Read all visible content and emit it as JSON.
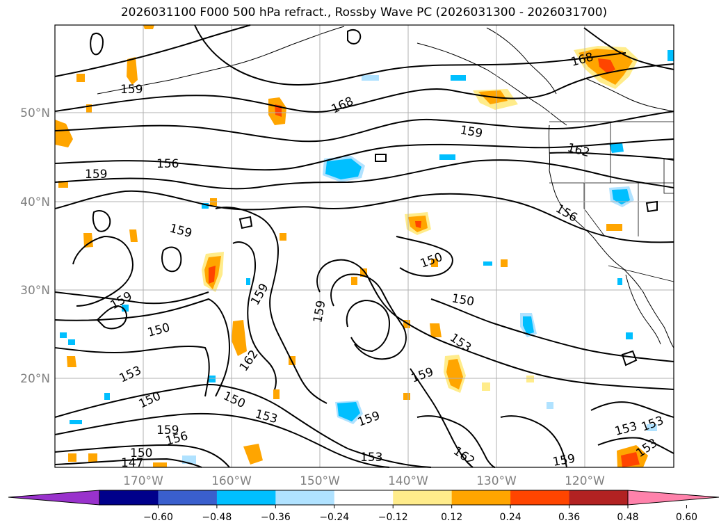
{
  "title": "2026031100 F000 500 hPa refract., Rossby Wave PC (2026031300 - 2026031700)",
  "lat_labels": [
    "50°N",
    "40°N",
    "30°N",
    "20°N"
  ],
  "lon_labels": [
    "170°W",
    "160°W",
    "150°W",
    "140°W",
    "130°W",
    "120°W"
  ],
  "colorbar": {
    "ticks": [
      "−0.60",
      "−0.48",
      "−0.36",
      "−0.24",
      "−0.12",
      "0.12",
      "0.24",
      "0.36",
      "0.48",
      "0.60"
    ],
    "colors": [
      "#9932cc",
      "#00008b",
      "#3a5fcd",
      "#00bfff",
      "#b0e2ff",
      "#ffffff",
      "#ffec8b",
      "#ffa500",
      "#ff4500",
      "#b22222",
      "#ff82ab"
    ]
  },
  "contour_labels": [
    "159",
    "159",
    "156",
    "168",
    "159",
    "168",
    "162",
    "159",
    "156",
    "159",
    "150",
    "150",
    "159",
    "159",
    "150",
    "153",
    "153",
    "162",
    "150",
    "150",
    "153",
    "159",
    "159",
    "159",
    "156",
    "150",
    "147",
    "153",
    "162",
    "159",
    "153",
    "153",
    "153"
  ]
}
